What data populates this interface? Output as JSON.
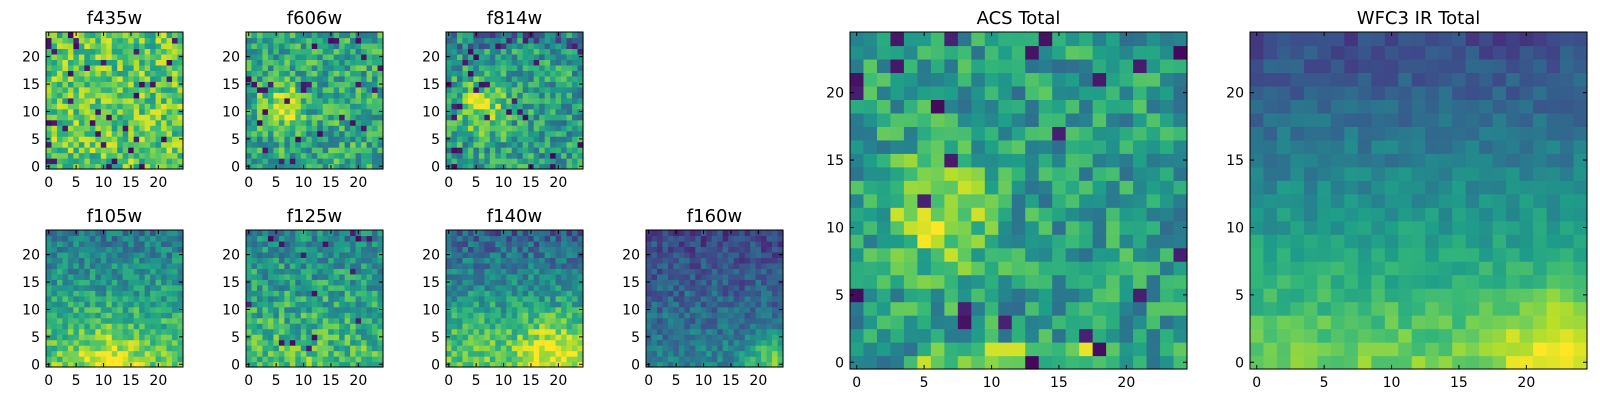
{
  "figure": {
    "background": "#ffffff"
  },
  "colormap": {
    "name": "viridis",
    "stops": [
      "#440154",
      "#482878",
      "#3e4989",
      "#31688e",
      "#26828e",
      "#1f9e89",
      "#35b779",
      "#6ece58",
      "#b5de2b",
      "#fde725"
    ]
  },
  "chart_data": [
    {
      "id": "f435w",
      "type": "heatmap",
      "title": "f435w",
      "grid_size": 25,
      "xlim": [
        -0.5,
        24.5
      ],
      "ylim": [
        -0.5,
        24.5
      ],
      "xticks": [
        0,
        5,
        10,
        15,
        20
      ],
      "yticks": [
        0,
        5,
        10,
        15,
        20
      ],
      "pattern": "noise",
      "level": 0.74,
      "noise": 0.22,
      "low_fraction": 0.05,
      "seed": 11
    },
    {
      "id": "f606w",
      "type": "heatmap",
      "title": "f606w",
      "grid_size": 25,
      "xlim": [
        -0.5,
        24.5
      ],
      "ylim": [
        -0.5,
        24.5
      ],
      "xticks": [
        0,
        5,
        10,
        15,
        20
      ],
      "yticks": [
        0,
        5,
        10,
        15,
        20
      ],
      "pattern": "noise-blob",
      "level": 0.6,
      "noise": 0.22,
      "low_fraction": 0.04,
      "blob": {
        "center": [
          6,
          11
        ],
        "radius": 4,
        "amplitude": 0.3
      },
      "seed": 23
    },
    {
      "id": "f814w",
      "type": "heatmap",
      "title": "f814w",
      "grid_size": 25,
      "xlim": [
        -0.5,
        24.5
      ],
      "ylim": [
        -0.5,
        24.5
      ],
      "xticks": [
        0,
        5,
        10,
        15,
        20
      ],
      "yticks": [
        0,
        5,
        10,
        15,
        20
      ],
      "pattern": "noise-blob",
      "level": 0.55,
      "noise": 0.22,
      "low_fraction": 0.05,
      "blob": {
        "center": [
          6,
          11
        ],
        "radius": 4.5,
        "amplitude": 0.35
      },
      "top_dark": 0.25,
      "seed": 37
    },
    {
      "id": "f105w",
      "type": "heatmap",
      "title": "f105w",
      "grid_size": 25,
      "xlim": [
        -0.5,
        24.5
      ],
      "ylim": [
        -0.5,
        24.5
      ],
      "xticks": [
        0,
        5,
        10,
        15,
        20
      ],
      "yticks": [
        0,
        5,
        10,
        15,
        20
      ],
      "pattern": "gradient",
      "top": 0.4,
      "bottom": 0.75,
      "noise": 0.16,
      "blob": {
        "center": [
          11,
          1
        ],
        "radius": 6,
        "amplitude": 0.22
      },
      "seed": 41
    },
    {
      "id": "f125w",
      "type": "heatmap",
      "title": "f125w",
      "grid_size": 25,
      "xlim": [
        -0.5,
        24.5
      ],
      "ylim": [
        -0.5,
        24.5
      ],
      "xticks": [
        0,
        5,
        10,
        15,
        20
      ],
      "yticks": [
        0,
        5,
        10,
        15,
        20
      ],
      "pattern": "gradient",
      "top": 0.45,
      "bottom": 0.72,
      "noise": 0.2,
      "low_fraction": 0.03,
      "seed": 53
    },
    {
      "id": "f140w",
      "type": "heatmap",
      "title": "f140w",
      "grid_size": 25,
      "xlim": [
        -0.5,
        24.5
      ],
      "ylim": [
        -0.5,
        24.5
      ],
      "xticks": [
        0,
        5,
        10,
        15,
        20
      ],
      "yticks": [
        0,
        5,
        10,
        15,
        20
      ],
      "pattern": "gradient",
      "top": 0.3,
      "bottom": 0.78,
      "noise": 0.16,
      "blob": {
        "center": [
          19,
          3
        ],
        "radius": 6,
        "amplitude": 0.25
      },
      "seed": 67
    },
    {
      "id": "f160w",
      "type": "heatmap",
      "title": "f160w",
      "grid_size": 25,
      "xlim": [
        -0.5,
        24.5
      ],
      "ylim": [
        -0.5,
        24.5
      ],
      "xticks": [
        0,
        5,
        10,
        15,
        20
      ],
      "yticks": [
        0,
        5,
        10,
        15,
        20
      ],
      "pattern": "gradient",
      "top": 0.2,
      "bottom": 0.45,
      "noise": 0.13,
      "blob": {
        "center": [
          22,
          1
        ],
        "radius": 4,
        "amplitude": 0.35
      },
      "seed": 79
    },
    {
      "id": "acs_total",
      "type": "heatmap",
      "title": "ACS Total",
      "grid_size": 25,
      "xlim": [
        -0.5,
        24.5
      ],
      "ylim": [
        -0.5,
        24.5
      ],
      "xticks": [
        0,
        5,
        10,
        15,
        20
      ],
      "yticks": [
        0,
        5,
        10,
        15,
        20
      ],
      "pattern": "noise-blob",
      "level": 0.55,
      "noise": 0.2,
      "low_fraction": 0.04,
      "blob": {
        "center": [
          6,
          11
        ],
        "radius": 4,
        "amplitude": 0.35
      },
      "bottom_boost": 0.25,
      "seed": 97
    },
    {
      "id": "wfc3_ir_total",
      "type": "heatmap",
      "title": "WFC3 IR Total",
      "grid_size": 25,
      "xlim": [
        -0.5,
        24.5
      ],
      "ylim": [
        -0.5,
        24.5
      ],
      "xticks": [
        0,
        5,
        10,
        15,
        20
      ],
      "yticks": [
        0,
        5,
        10,
        15,
        20
      ],
      "pattern": "gradient",
      "top": 0.22,
      "bottom": 0.78,
      "noise": 0.08,
      "blob": {
        "center": [
          22,
          1
        ],
        "radius": 4,
        "amplitude": 0.25
      },
      "seed": 113
    }
  ]
}
